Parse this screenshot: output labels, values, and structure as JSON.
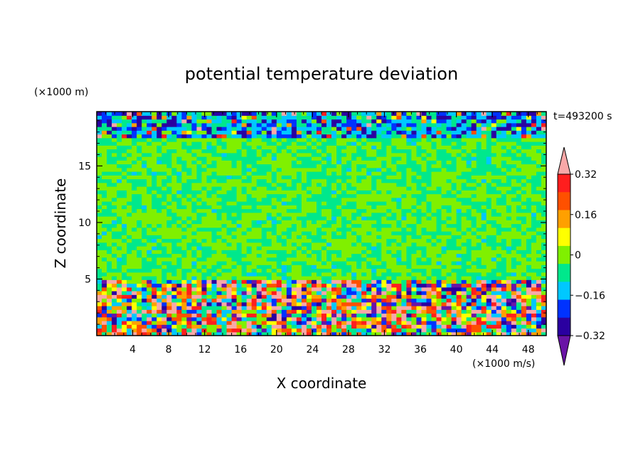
{
  "chart_data": {
    "type": "heatmap",
    "title": "potential temperature deviation",
    "xlabel": "X coordinate",
    "ylabel": "Z coordinate",
    "x_unit": "(×1000 m/s)",
    "y_unit": "(×1000 m)",
    "time_label": "t=493200 s",
    "xlim": [
      0,
      50
    ],
    "ylim": [
      0,
      19.8
    ],
    "x_ticks": [
      4,
      8,
      12,
      16,
      20,
      24,
      28,
      32,
      36,
      40,
      44,
      48
    ],
    "y_ticks": [
      5,
      10,
      15
    ],
    "colorbar": {
      "levels": [
        -0.4,
        -0.32,
        -0.24,
        -0.16,
        -0.08,
        0,
        0.08,
        0.16,
        0.24,
        0.32,
        0.4
      ],
      "tick_labels": [
        "0.32",
        "0.16",
        "0",
        "−0.16",
        "−0.32"
      ],
      "tick_values": [
        0.32,
        0.16,
        0,
        -0.16,
        -0.32
      ],
      "colors": [
        "#6a14a6",
        "#2a00a0",
        "#0032ff",
        "#00c8ff",
        "#00e88c",
        "#80f000",
        "#ffff00",
        "#ffa000",
        "#ff5000",
        "#ff1e1e",
        "#f8a8a8"
      ]
    },
    "field_summary": [
      {
        "z_range": [
          0,
          4.8
        ],
        "description_value": "strong mixed anomalies from -0.4 to 0.4"
      },
      {
        "z_range": [
          4.8,
          17.5
        ],
        "description_value": "mostly 0 to 0.08 and -0.08 to 0"
      },
      {
        "z_range": [
          17.5,
          19.8
        ],
        "description_value": "-0.16 to -0.32 near top with positive patches"
      }
    ]
  }
}
